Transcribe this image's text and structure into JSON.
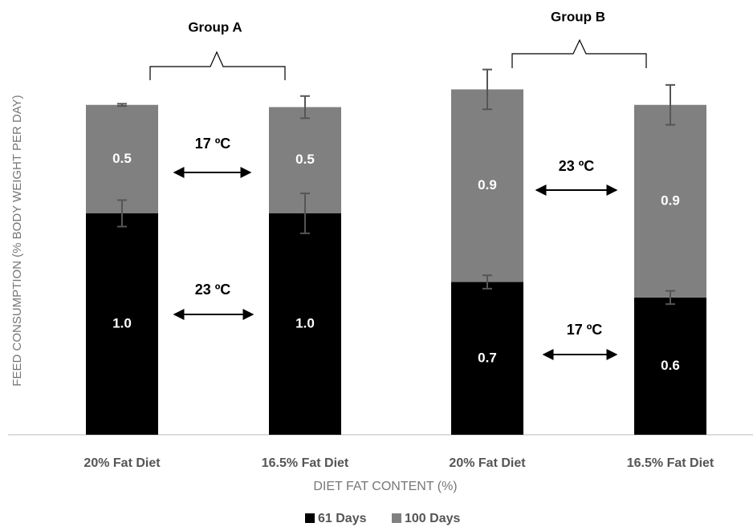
{
  "chart_data": {
    "type": "stacked-bar",
    "x_label": "DIET FAT CONTENT (%)",
    "y_label": "FEED CONSUMPTION (% BODY WEIGHT PER DAY)",
    "categories": [
      "20% Fat Diet",
      "16.5% Fat Diet",
      "20% Fat Diet",
      "16.5% Fat Diet"
    ],
    "series": [
      {
        "name": "61 Days",
        "color": "#000000",
        "values": [
          1.0,
          1.0,
          0.69,
          0.62
        ],
        "value_labels": [
          "1.0",
          "1.0",
          "0.7",
          "0.6"
        ],
        "errors": [
          0.06,
          0.09,
          0.03,
          0.03
        ]
      },
      {
        "name": "100 Days",
        "color": "#808080",
        "values": [
          0.49,
          0.48,
          0.87,
          0.87
        ],
        "value_labels": [
          "0.5",
          "0.5",
          "0.9",
          "0.9"
        ],
        "errors": [
          0.005,
          0.05,
          0.09,
          0.09
        ]
      }
    ],
    "groups": [
      "Group A",
      "Group B"
    ],
    "annotations": [
      "17 ºC",
      "23 ºC",
      "23 ºC",
      "17 ºC"
    ]
  }
}
